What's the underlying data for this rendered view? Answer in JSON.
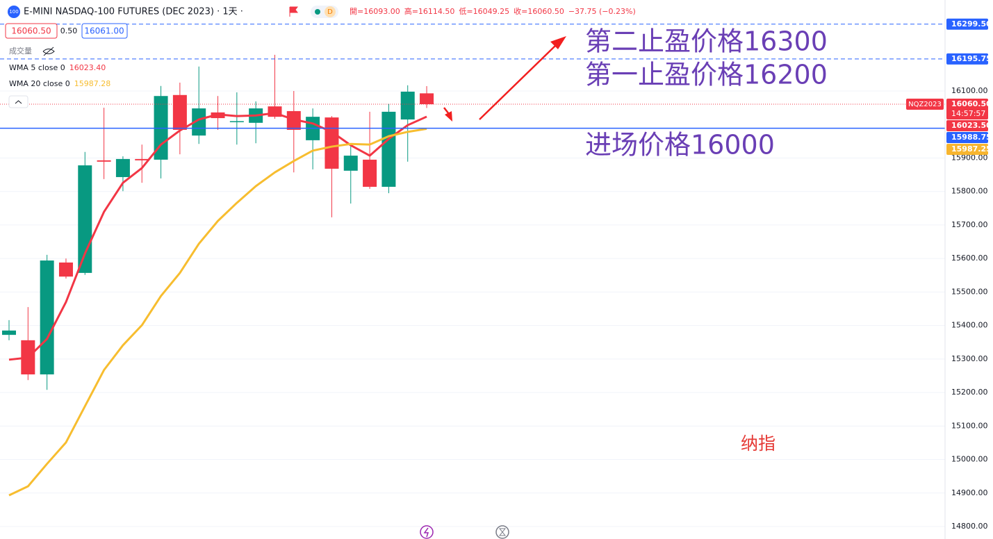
{
  "toolbar": {
    "badge": "100",
    "title": "E-MINI NASDAQ-100 FUTURES (DEC 2023) · 1天 ·",
    "interval_badge": "D",
    "ohlc": [
      "開=16093.00",
      "高=16114.50",
      "低=16049.25",
      "收=16060.50",
      "−37.75 (−0.23%)"
    ],
    "sell": "16060.50",
    "spread": "0.50",
    "buy": "16061.00",
    "volume": "成交量"
  },
  "chart_data": {
    "type": "candlestick",
    "categories": [
      null,
      null,
      null,
      null,
      null,
      null,
      null,
      null,
      null,
      null,
      null,
      null,
      null,
      null,
      null,
      null,
      null,
      null,
      null,
      null,
      null,
      null,
      null
    ],
    "open": [
      15372,
      15356,
      15254,
      15588,
      15557,
      15893,
      15843,
      15897,
      15895,
      16088,
      15967,
      16036,
      16007,
      16005,
      16054,
      16040,
      15953,
      16021,
      15862,
      15895,
      15814,
      16015,
      16093
    ],
    "high": [
      15416,
      15455,
      15611,
      15600,
      15918,
      16050,
      15905,
      15940,
      16115,
      16125,
      16173,
      16085,
      16096,
      16069,
      16208,
      16100,
      16048,
      16025,
      15938,
      16038,
      16061,
      16117,
      16114.5
    ],
    "low": [
      15356,
      15237,
      15208,
      15540,
      15551,
      15837,
      15801,
      15826,
      15839,
      15911,
      15942,
      15984,
      15940,
      15944,
      16017,
      15857,
      15866,
      15723,
      15764,
      15808,
      15795,
      15889,
      16049.25
    ],
    "close": [
      15385,
      15254,
      15594,
      15546,
      15878,
      15889,
      15897,
      15893,
      16085,
      15984,
      16048,
      16019,
      16010,
      16048,
      16023,
      15984,
      16023,
      15868,
      15907,
      15814,
      16038,
      16098,
      16060.5
    ],
    "up_color": "#089981",
    "down_color": "#f23645",
    "overlays": [
      {
        "name": "WMA 5 close 0",
        "legend_value": "16023.40",
        "color": "#f23645",
        "values": [
          15298,
          15304,
          15360,
          15470,
          15615,
          15739,
          15826,
          15870,
          15940,
          15982,
          16015,
          16030,
          16025,
          16027,
          16034,
          16015,
          16003,
          15978,
          15938,
          15907,
          15957,
          15998,
          16023.4
        ]
      },
      {
        "name": "WMA 20 close 0",
        "legend_value": "15987.28",
        "color": "#f7bd2f",
        "values": [
          14893,
          14920,
          14987,
          15051,
          15159,
          15267,
          15341,
          15401,
          15488,
          15557,
          15644,
          15712,
          15766,
          15816,
          15857,
          15891,
          15922,
          15934,
          15942,
          15940,
          15965,
          15978,
          15987.28
        ]
      }
    ],
    "ylim": [
      14762.7,
      16371.6
    ],
    "yticks": [
      {
        "value": 14800,
        "label": "14800.00"
      },
      {
        "value": 14900,
        "label": "14900.00"
      },
      {
        "value": 15000,
        "label": "15000.00"
      },
      {
        "value": 15100,
        "label": "15100.00"
      },
      {
        "value": 15200,
        "label": "15200.00"
      },
      {
        "value": 15300,
        "label": "15300.00"
      },
      {
        "value": 15400,
        "label": "15400.00"
      },
      {
        "value": 15500,
        "label": "15500.00"
      },
      {
        "value": 15600,
        "label": "15600.00"
      },
      {
        "value": 15700,
        "label": "15700.00"
      },
      {
        "value": 15800,
        "label": "15800.00"
      },
      {
        "value": 15900,
        "label": "15900.00"
      },
      {
        "value": 16100,
        "label": "16100.00"
      }
    ],
    "grid": true,
    "price_lines": [
      {
        "value": 16299.5,
        "label": "16299.50",
        "color": "#2962ff",
        "style": "dashed"
      },
      {
        "value": 16195.75,
        "label": "16195.75",
        "color": "#2962ff",
        "style": "dashed"
      },
      {
        "value": 16060.5,
        "label": "16060.50",
        "color": "#f23645",
        "style": "dotted",
        "time": "14:57:57",
        "tag": "NQZ2023"
      },
      {
        "value": 15988.75,
        "label": "15988.75",
        "color": "#2962ff",
        "style": "solid"
      }
    ],
    "axis_markers": [
      {
        "value": 16023.5,
        "label": "16023.50",
        "color": "#f23645"
      },
      {
        "value": 15987.25,
        "label": "15987.25",
        "color": "#f7b52f"
      }
    ],
    "annotations": [
      "第二止盈价格16300",
      "第一止盈价格16200",
      "进场价格16000",
      "纳指"
    ]
  }
}
